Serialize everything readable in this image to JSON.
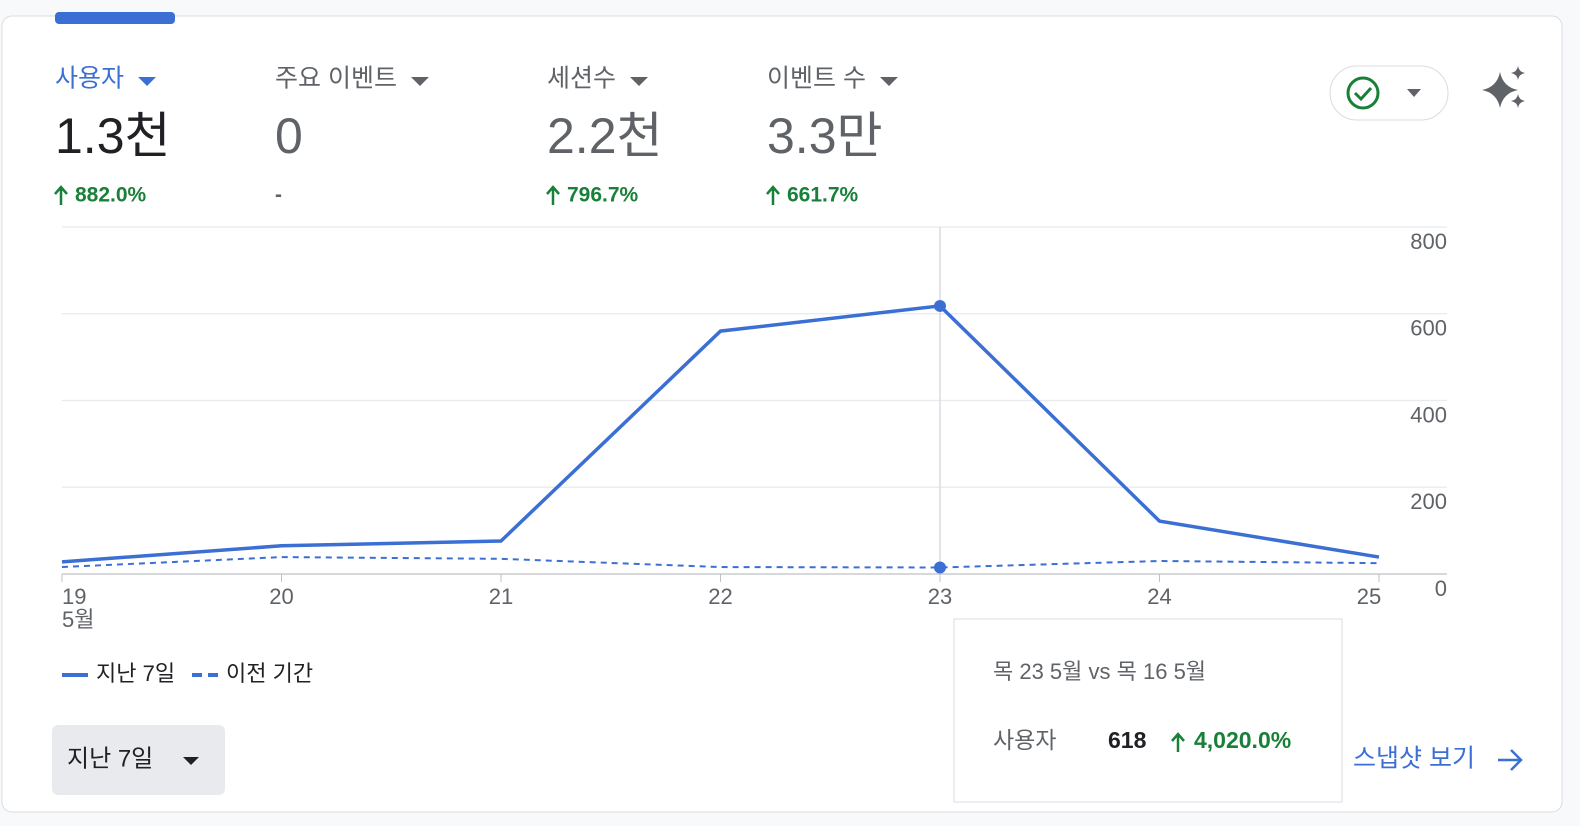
{
  "metrics": [
    {
      "label": "사용자",
      "value": "1.3천",
      "change": "882.0%"
    },
    {
      "label": "주요 이벤트",
      "value": "0",
      "change": "-"
    },
    {
      "label": "세션수",
      "value": "2.2천",
      "change": "796.7%"
    },
    {
      "label": "이벤트 수",
      "value": "3.3만",
      "change": "661.7%"
    }
  ],
  "chart_data": {
    "type": "line",
    "categories": [
      "19",
      "20",
      "21",
      "22",
      "23",
      "24",
      "25"
    ],
    "x_sublabel": "5월",
    "series": [
      {
        "name": "지난 7일",
        "color": "#3b6fd4",
        "values": [
          28,
          65,
          76,
          560,
          618,
          122,
          39
        ]
      },
      {
        "name": "이전 기간",
        "color": "#3b6fd4",
        "values": [
          16,
          39,
          35,
          16,
          15,
          30,
          25
        ]
      }
    ],
    "ylim": [
      0,
      800
    ],
    "yticks": [
      0,
      200,
      400,
      600,
      800
    ],
    "grid": true
  },
  "period_button": "지난 7일",
  "link": "스냅샷 보기",
  "tooltip": {
    "title": "목 23 5월 vs 목 16 5월",
    "metric": "사용자",
    "value": "618",
    "change": "4,020.0%"
  }
}
